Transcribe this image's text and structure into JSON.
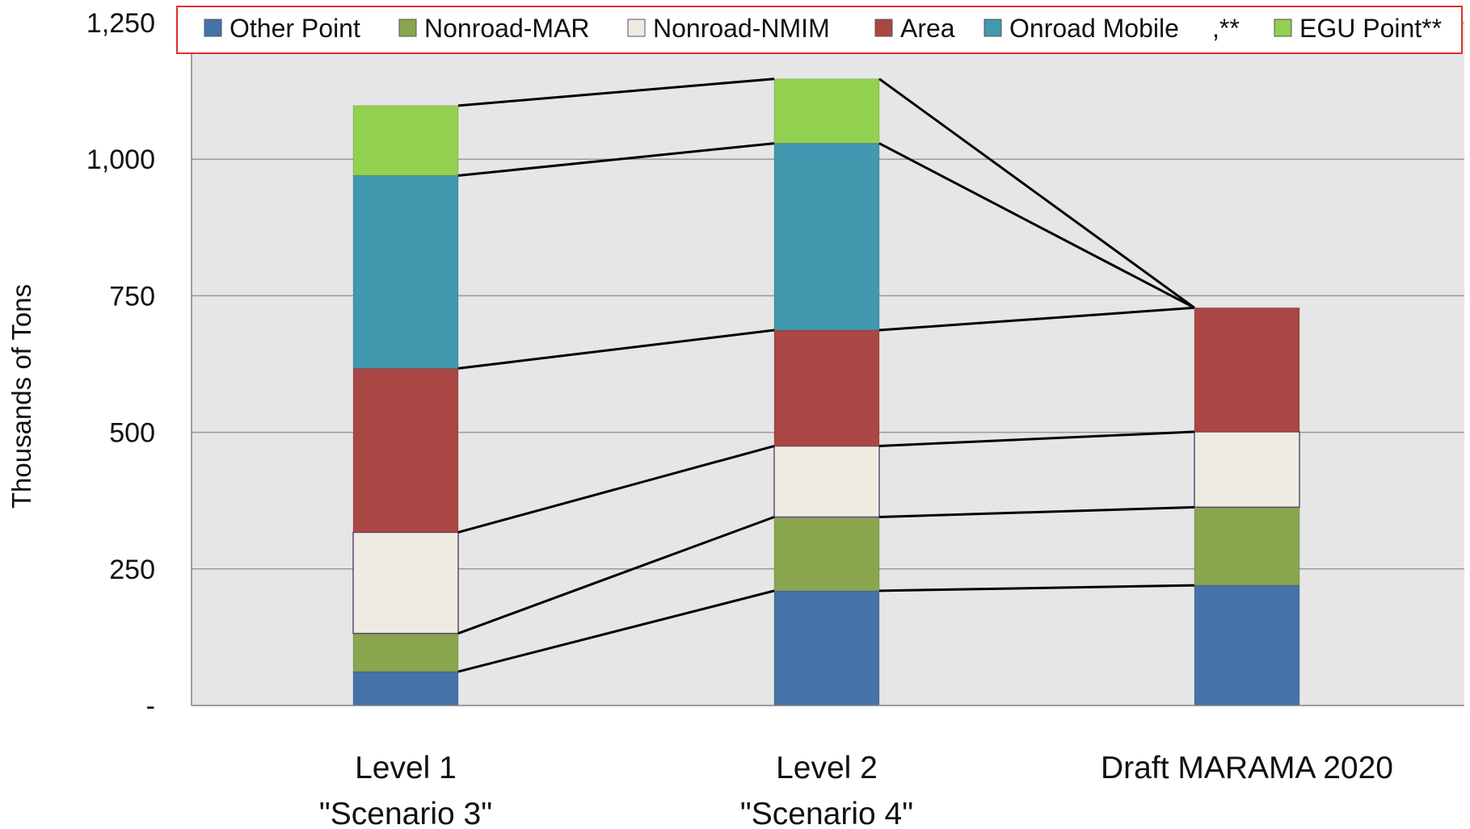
{
  "chart_data": {
    "type": "bar",
    "stacked": true,
    "categories": [
      [
        "Level 1",
        "\"Scenario 3\""
      ],
      [
        "Level 2",
        "\"Scenario 4\""
      ],
      [
        "Draft MARAMA 2020"
      ]
    ],
    "ylabel": "Thousands of Tons",
    "xlabel": "",
    "title": "",
    "ylim": [
      0,
      1250
    ],
    "yticks": [
      0,
      250,
      500,
      750,
      1000,
      1250
    ],
    "ytick_labels": [
      "-",
      "250",
      "500",
      "750",
      "1,000",
      "1,250"
    ],
    "grid": true,
    "legend_position": "top",
    "connector_lines": true,
    "series": [
      {
        "name": "Other Point",
        "color": "#4572A7",
        "values": [
          62,
          210,
          220
        ]
      },
      {
        "name": "Nonroad-MAR",
        "color": "#89A54E",
        "values": [
          70,
          135,
          143
        ]
      },
      {
        "name": "Nonroad-NMIM",
        "color": "#EEECE1",
        "values": [
          185,
          130,
          138
        ]
      },
      {
        "name": "Area",
        "color": "#AA4643",
        "values": [
          300,
          212,
          227
        ]
      },
      {
        "name": "Onroad Mobile",
        "color": "#4198AF",
        "values": [
          353,
          342,
          0
        ]
      },
      {
        "name": "EGU Point**",
        "color": "#92D050",
        "values": [
          128,
          118,
          0
        ]
      }
    ],
    "legend_extra_text": ",**",
    "legend": [
      {
        "label": "Other Point",
        "color": "#4572A7"
      },
      {
        "label": "Nonroad-MAR",
        "color": "#89A54E"
      },
      {
        "label": "Nonroad-NMIM",
        "color": "#EEECE1"
      },
      {
        "label": "Area",
        "color": "#AA4643"
      },
      {
        "label": "Onroad Mobile",
        "color": "#4198AF"
      },
      {
        "label": "EGU Point**",
        "color": "#92D050"
      }
    ],
    "colors": {
      "plot_background": "#E6E6E6",
      "gridline": "#9A9A9A",
      "legend_border": "#E0312F",
      "connector": "#000000"
    }
  }
}
